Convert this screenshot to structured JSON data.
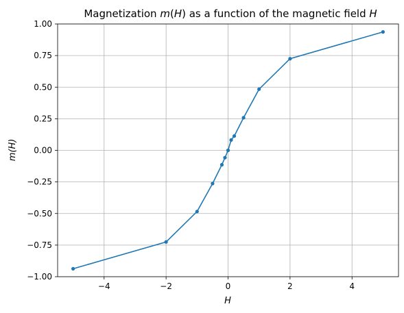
{
  "chart_data": {
    "type": "line",
    "title": "Magnetization m(H) as a function of the magnetic field H",
    "title_parts": {
      "pre": "Magnetization ",
      "m_italic": "m",
      "mid": "(",
      "h1_italic": "H",
      "post": ") as a function of the magnetic field ",
      "h2_italic": "H"
    },
    "xlabel": "H",
    "ylabel": "m(H)",
    "xlim": [
      -5.5,
      5.5
    ],
    "ylim": [
      -1.0,
      1.0
    ],
    "xticks": [
      -4,
      -2,
      0,
      2,
      4
    ],
    "xtick_labels": [
      "−4",
      "−2",
      "0",
      "2",
      "4"
    ],
    "yticks": [
      -1.0,
      -0.75,
      -0.5,
      -0.25,
      0.0,
      0.25,
      0.5,
      0.75,
      1.0
    ],
    "ytick_labels": [
      "−1.00",
      "−0.75",
      "−0.50",
      "−0.25",
      "0.00",
      "0.25",
      "0.50",
      "0.75",
      "1.00"
    ],
    "grid": true,
    "color": "#1f77b4",
    "series": [
      {
        "x": [
          -5,
          -2,
          -1,
          -0.5,
          -0.2,
          -0.1,
          0,
          0.1,
          0.2,
          0.5,
          1,
          2,
          5
        ],
        "y": [
          -0.937,
          -0.725,
          -0.484,
          -0.263,
          -0.114,
          -0.058,
          0.0,
          0.082,
          0.113,
          0.258,
          0.484,
          0.725,
          0.937
        ]
      }
    ]
  }
}
